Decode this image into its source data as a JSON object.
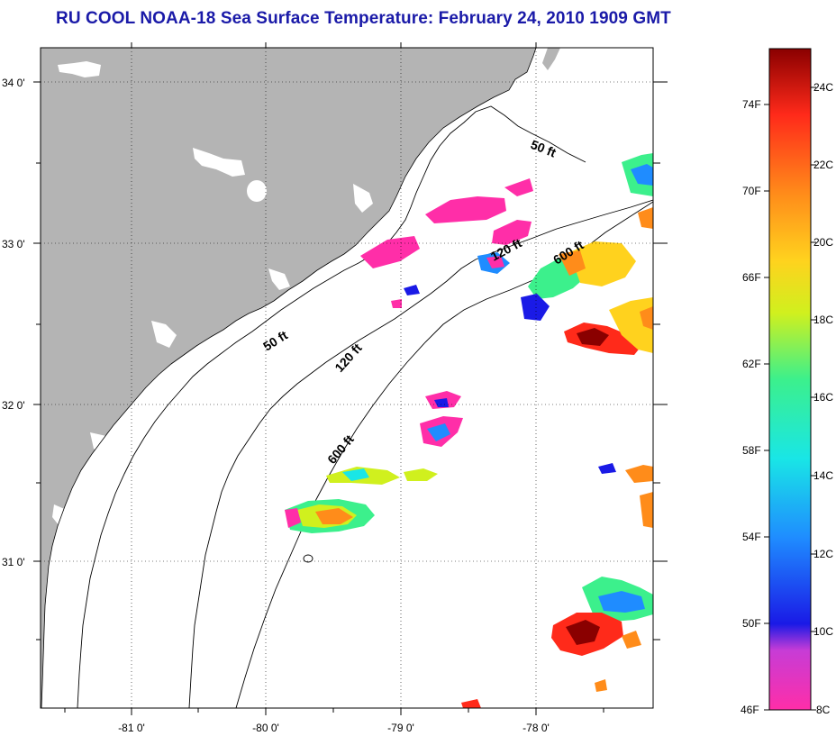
{
  "title": "RU COOL  NOAA-18  Sea Surface Temperature:  February 24, 2010 1909 GMT",
  "lat_labels": [
    "34 0'",
    "33 0'",
    "32 0'",
    "31 0'"
  ],
  "lon_labels": [
    "-81 0'",
    "-80 0'",
    "-79 0'",
    "-78 0'"
  ],
  "contours": [
    {
      "label": "50 ft",
      "depth_ft": 50
    },
    {
      "label": "120 ft",
      "depth_ft": 120
    },
    {
      "label": "600 ft",
      "depth_ft": 600
    }
  ],
  "colorbar": {
    "fahrenheit_labels": [
      "74F",
      "70F",
      "66F",
      "62F",
      "58F",
      "54F",
      "50F",
      "46F"
    ],
    "celsius_labels": [
      "24C",
      "22C",
      "20C",
      "18C",
      "16C",
      "14C",
      "12C",
      "10C",
      "8C"
    ],
    "colors": [
      "#ff2ea8",
      "#c73cd6",
      "#1a1ae6",
      "#1f8cff",
      "#19e6e6",
      "#3cf08c",
      "#d0f01e",
      "#ffd21e",
      "#ff8c1a",
      "#ff2a1a",
      "#8a0000"
    ]
  },
  "colors": {
    "land": "#b4b4b4",
    "title": "#1a1aa8",
    "graticule": "#000000"
  }
}
